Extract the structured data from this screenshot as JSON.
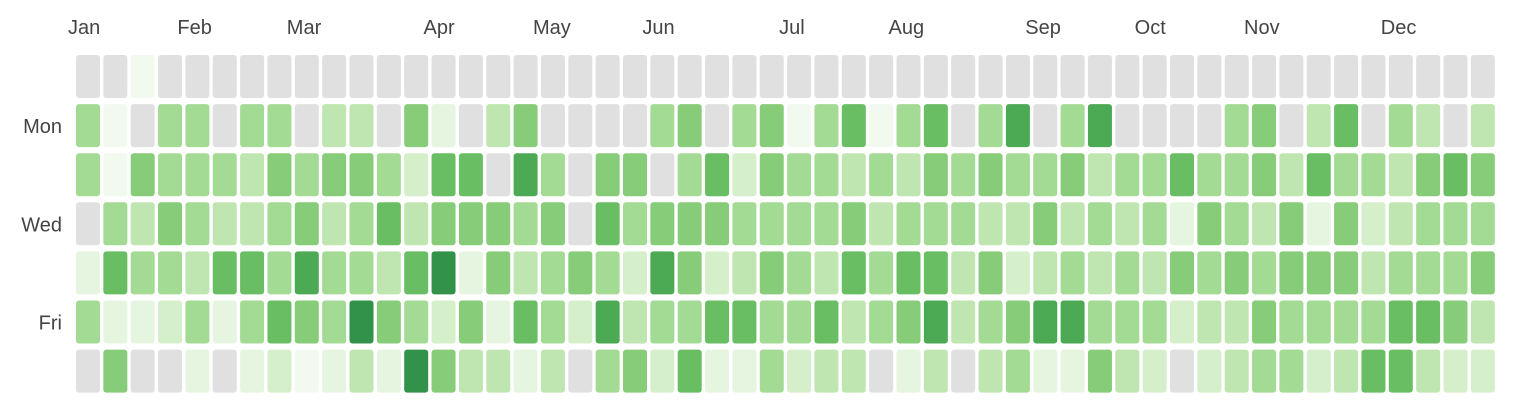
{
  "chart_data": {
    "type": "heatmap",
    "title": "",
    "months": [
      "Jan",
      "Feb",
      "Mar",
      "Apr",
      "May",
      "Jun",
      "Jul",
      "Aug",
      "Sep",
      "Oct",
      "Nov",
      "Dec"
    ],
    "month_start_weeks": [
      0,
      4,
      8,
      13,
      17,
      21,
      26,
      30,
      35,
      39,
      43,
      48
    ],
    "weekday_labels": [
      {
        "day": 1,
        "label": "Mon"
      },
      {
        "day": 3,
        "label": "Wed"
      },
      {
        "day": 5,
        "label": "Fri"
      }
    ],
    "level_scale": [
      0,
      10
    ],
    "no_data_value": -1,
    "num_weeks": 52,
    "levels": [
      [
        -1,
        4,
        4,
        -1,
        1,
        4,
        -1,
        -1,
        0,
        0,
        4,
        6,
        1,
        5,
        0,
        -1,
        5,
        3,
        4,
        1,
        -1
      ],
      [
        -1,
        4,
        4,
        5,
        4,
        2,
        -1,
        -1,
        4,
        4,
        4,
        3,
        4,
        1,
        -1,
        -1,
        4,
        3,
        6,
        1,
        -1
      ],
      [
        -1,
        4,
        3,
        3,
        6,
        4,
        1,
        -1,
        4,
        5,
        4,
        4,
        6,
        2,
        -1,
        -1,
        4,
        5,
        7,
        5,
        0
      ],
      [
        -1,
        3,
        5,
        3,
        4,
        4,
        1,
        -1,
        3,
        5,
        4,
        4,
        8,
        3,
        -1,
        -1,
        4,
        6,
        3,
        5,
        1
      ],
      [
        -1,
        5,
        2,
        3,
        6,
        4,
        8,
        -1,
        1,
        6,
        5,
        8,
        2,
        5,
        -1,
        -1,
        6,
        5,
        1,
        5,
        3
      ],
      [
        -1,
        3,
        -1,
        5,
        5,
        1,
        3,
        -1,
        5,
        7,
        4,
        3,
        6,
        1,
        -1,
        -1,
        4,
        5,
        4,
        4,
        3
      ],
      [
        -1,
        -1,
        -1,
        -1,
        5,
        2,
        -1,
        -1,
        -1,
        5,
        6,
        4,
        7,
        4,
        -1,
        -1,
        5,
        4,
        2,
        3,
        5
      ],
      [
        -1,
        4,
        -1,
        5,
        7,
        4,
        2,
        -1,
        5,
        4,
        5,
        5,
        4,
        6,
        -1,
        -1,
        6,
        5,
        2,
        6,
        1
      ],
      [
        -1,
        4,
        2,
        4,
        3,
        6,
        1,
        -1,
        5,
        5,
        4,
        5,
        4,
        4,
        -1,
        0,
        4,
        4,
        4,
        4,
        2
      ],
      [
        -1,
        4,
        4,
        4,
        3,
        6,
        3,
        -1,
        6,
        3,
        5,
        6,
        3,
        3,
        -1,
        0,
        4,
        3,
        4,
        4,
        -1
      ],
      [
        -1,
        4,
        3,
        4,
        6,
        5,
        1,
        -1,
        6,
        5,
        4,
        6,
        7,
        3,
        -1,
        -1,
        4,
        4,
        3,
        3,
        -1
      ],
      [
        -1,
        4,
        5,
        3,
        5,
        4,
        3,
        -1,
        7,
        4,
        3,
        2,
        5,
        4,
        -1,
        -1,
        4,
        5,
        3,
        7,
        1
      ],
      [
        -1,
        4,
        5,
        3,
        4,
        7,
        1,
        -1,
        7,
        3,
        4,
        3,
        4,
        5,
        -1,
        -1,
        4,
        3,
        4,
        4,
        3
      ],
      [
        -1,
        -1,
        4,
        4,
        3,
        4,
        2,
        -1,
        -1,
        6,
        1,
        5,
        2,
        -1,
        -1,
        -1,
        4,
        5,
        4,
        3,
        2
      ],
      [
        -1,
        4,
        4,
        4,
        5,
        3,
        3,
        -1,
        5,
        5,
        3,
        4,
        5,
        4,
        -1,
        -1,
        3,
        5,
        5,
        4,
        4
      ],
      [
        -1,
        3,
        6,
        1,
        5,
        4,
        2,
        -1,
        6,
        4,
        5,
        5,
        4,
        3,
        -1,
        -1,
        4,
        2,
        3,
        4,
        6
      ],
      [
        -1,
        4,
        3,
        3,
        4,
        6,
        6,
        -1,
        3,
        5,
        4,
        4,
        6,
        3,
        -1,
        -1,
        6,
        4,
        4,
        5,
        2
      ],
      [
        -1,
        3,
        5,
        4,
        5,
        3,
        2,
        0,
        0,
        4,
        0,
        4,
        6,
        5,
        -1,
        -1,
        4,
        3,
        5,
        5,
        2
      ],
      [
        -1,
        3,
        6,
        1,
        3,
        6,
        3,
        -1,
        6,
        5,
        4,
        7,
        3,
        4,
        -1,
        -1,
        3,
        3,
        4,
        5,
        3
      ],
      [
        -1,
        2,
        5,
        2,
        4,
        3,
        3,
        -1,
        3,
        4,
        6,
        6,
        5,
        4,
        -1,
        -1,
        5,
        2,
        3,
        4,
        4
      ],
      [
        -1,
        4,
        4,
        5,
        4,
        2,
        5,
        -1,
        4,
        5,
        5,
        4,
        4,
        3,
        -1,
        -1,
        2,
        4,
        3,
        5,
        4
      ],
      [
        -1,
        6,
        7,
        3,
        5,
        4,
        1,
        -1,
        5,
        3,
        4,
        4,
        4,
        4,
        -1,
        -1,
        3,
        5,
        6,
        5,
        4
      ],
      [
        -1,
        4,
        3,
        4,
        1,
        5,
        4,
        -1,
        4,
        6,
        4,
        4,
        5,
        4,
        -1,
        -1,
        4,
        5,
        3,
        4,
        3
      ],
      [
        -1,
        3,
        1,
        5,
        3,
        3,
        4,
        -1,
        6,
        3,
        4,
        7,
        4,
        3,
        -1,
        -1,
        4,
        3,
        4,
        5,
        3
      ],
      [
        -1,
        0,
        2,
        4,
        4,
        4,
        4,
        -1,
        6,
        5,
        -1,
        4,
        4,
        3,
        -1,
        -1,
        4,
        4,
        4,
        4,
        4
      ],
      [
        -1,
        -1,
        4,
        5,
        6,
        3,
        6,
        -1,
        4,
        4,
        3,
        4,
        5,
        5,
        -1,
        -1,
        4,
        4,
        3,
        7,
        3
      ],
      [
        -1,
        5,
        8,
        5,
        5,
        4,
        5,
        -1,
        -1,
        4,
        4,
        3,
        4,
        2,
        -1,
        -1,
        3,
        4,
        5,
        4,
        4
      ],
      [
        -1,
        5,
        2,
        4,
        6,
        5,
        4,
        -1,
        4,
        5,
        6,
        5,
        4,
        5,
        -1,
        -1,
        5,
        6,
        4,
        4,
        4
      ],
      [
        -1,
        4,
        2,
        2,
        5,
        2,
        6,
        0,
        5,
        6,
        4,
        5,
        3,
        6,
        -1,
        -1,
        6,
        6,
        5,
        3,
        4
      ],
      [
        -1,
        4,
        8,
        6,
        4,
        6,
        4,
        -1,
        3,
        4,
        5,
        3,
        5,
        3,
        -1,
        -1,
        4,
        4,
        5,
        5,
        3
      ],
      [
        -1,
        4,
        6,
        5,
        3,
        6,
        3,
        -1,
        6,
        6,
        6,
        4,
        5,
        3,
        -1,
        -1,
        4,
        5,
        4,
        5,
        4
      ],
      [
        -1,
        2,
        6,
        3,
        4,
        2,
        2,
        -1,
        4,
        5,
        4,
        5,
        4,
        4,
        -1,
        -1,
        4,
        5,
        3,
        4,
        5
      ],
      [
        -1,
        8,
        3,
        4,
        4,
        2,
        6,
        -1,
        4,
        5,
        4,
        4,
        4,
        4,
        -1,
        -1,
        5,
        4,
        5,
        3,
        4
      ],
      [
        -1,
        6,
        4,
        4,
        6,
        3,
        5,
        -1,
        5,
        6,
        3,
        5,
        4,
        3,
        -1,
        -1,
        6,
        7,
        4,
        5,
        5
      ],
      [
        -1,
        5,
        4,
        4,
        5,
        3,
        4,
        -1,
        4,
        4,
        4,
        2,
        5,
        4,
        -1,
        -1,
        4,
        4,
        5,
        4,
        3
      ],
      [
        -1,
        4,
        3,
        4,
        6,
        4,
        4,
        -1,
        4,
        4,
        4,
        5,
        4,
        4,
        -1,
        -1,
        3,
        4,
        4,
        4,
        4
      ],
      [
        -1,
        3,
        4,
        5,
        4,
        5,
        4,
        -1,
        6,
        4,
        5,
        5,
        6,
        5,
        -1,
        -1,
        4,
        4,
        5,
        5,
        4
      ],
      [
        -1,
        4,
        3,
        4,
        6,
        2,
        4,
        -1,
        3,
        4,
        6,
        5,
        4,
        4,
        -1,
        -1,
        4,
        4,
        5,
        5,
        4
      ],
      [
        -1,
        4,
        4,
        4,
        4,
        2,
        4,
        -1,
        5,
        6,
        4,
        4,
        4,
        3,
        -1,
        -1,
        4,
        4,
        4,
        3,
        3
      ],
      [
        -1,
        4,
        5,
        4,
        5,
        4,
        5,
        -1,
        4,
        4,
        4,
        5,
        4,
        4,
        -1,
        -1,
        4,
        4,
        4,
        4,
        4
      ],
      [
        -1,
        3,
        4,
        4,
        4,
        3,
        4,
        -1,
        4,
        5,
        4,
        4,
        3,
        4,
        -1,
        -1,
        4,
        4,
        5,
        4,
        4
      ],
      [
        -1,
        4,
        5,
        6,
        4,
        4,
        4,
        -1,
        4,
        4,
        4,
        4,
        4,
        4,
        -1,
        -1,
        4,
        4,
        4,
        4,
        4
      ],
      [
        -1,
        4,
        4,
        4,
        5,
        4,
        4,
        -1,
        5,
        4,
        4,
        5,
        4,
        3,
        -1,
        -1,
        4,
        4,
        4,
        4,
        4
      ],
      [
        -1,
        4,
        4,
        5,
        4,
        4,
        4,
        -1,
        4,
        4,
        5,
        4,
        5,
        4,
        -1,
        -1,
        4,
        5,
        4,
        4,
        4
      ],
      [
        -1,
        4,
        5,
        4,
        4,
        4,
        4,
        -1,
        4,
        4,
        4,
        4,
        4,
        4,
        -1,
        -1,
        4,
        4,
        4,
        4,
        4
      ],
      [
        -1,
        4,
        4,
        4,
        4,
        5,
        4,
        -1,
        4,
        5,
        4,
        4,
        4,
        4,
        -1,
        -1,
        4,
        4,
        5,
        4,
        4
      ],
      [
        -1,
        4,
        5,
        4,
        4,
        4,
        4,
        -1,
        4,
        4,
        4,
        5,
        4,
        4,
        -1,
        -1,
        4,
        4,
        4,
        4,
        4
      ],
      [
        -1,
        4,
        4,
        5,
        4,
        4,
        4,
        -1,
        4,
        4,
        4,
        4,
        4,
        4,
        -1,
        -1,
        4,
        4,
        4,
        4,
        4
      ],
      [
        -1,
        4,
        4,
        4,
        5,
        4,
        4,
        -1,
        4,
        4,
        4,
        4,
        4,
        4,
        -1,
        -1,
        4,
        4,
        4,
        4,
        4
      ],
      [
        -1,
        4,
        5,
        4,
        4,
        4,
        4,
        -1,
        4,
        4,
        4,
        4,
        4,
        4,
        -1,
        -1,
        4,
        4,
        4,
        4,
        4
      ],
      [
        -1,
        4,
        4,
        4,
        4,
        4,
        4,
        -1,
        4,
        4,
        4,
        4,
        4,
        4,
        -1,
        -1,
        4,
        4,
        4,
        4,
        4
      ],
      [
        -1,
        4,
        4,
        4,
        4,
        4,
        4,
        -1,
        4,
        4,
        4,
        4,
        4,
        4,
        -1,
        -1,
        4,
        4,
        4,
        4,
        4
      ]
    ],
    "colors": {
      "no_data": "#e0e0e0",
      "scale": [
        "#f2faef",
        "#e5f5df",
        "#d4efc9",
        "#bfe6b0",
        "#a3da94",
        "#87cc78",
        "#69bd62",
        "#4daa54",
        "#33924a",
        "#1f7a3a",
        "#0c5c28"
      ]
    }
  }
}
